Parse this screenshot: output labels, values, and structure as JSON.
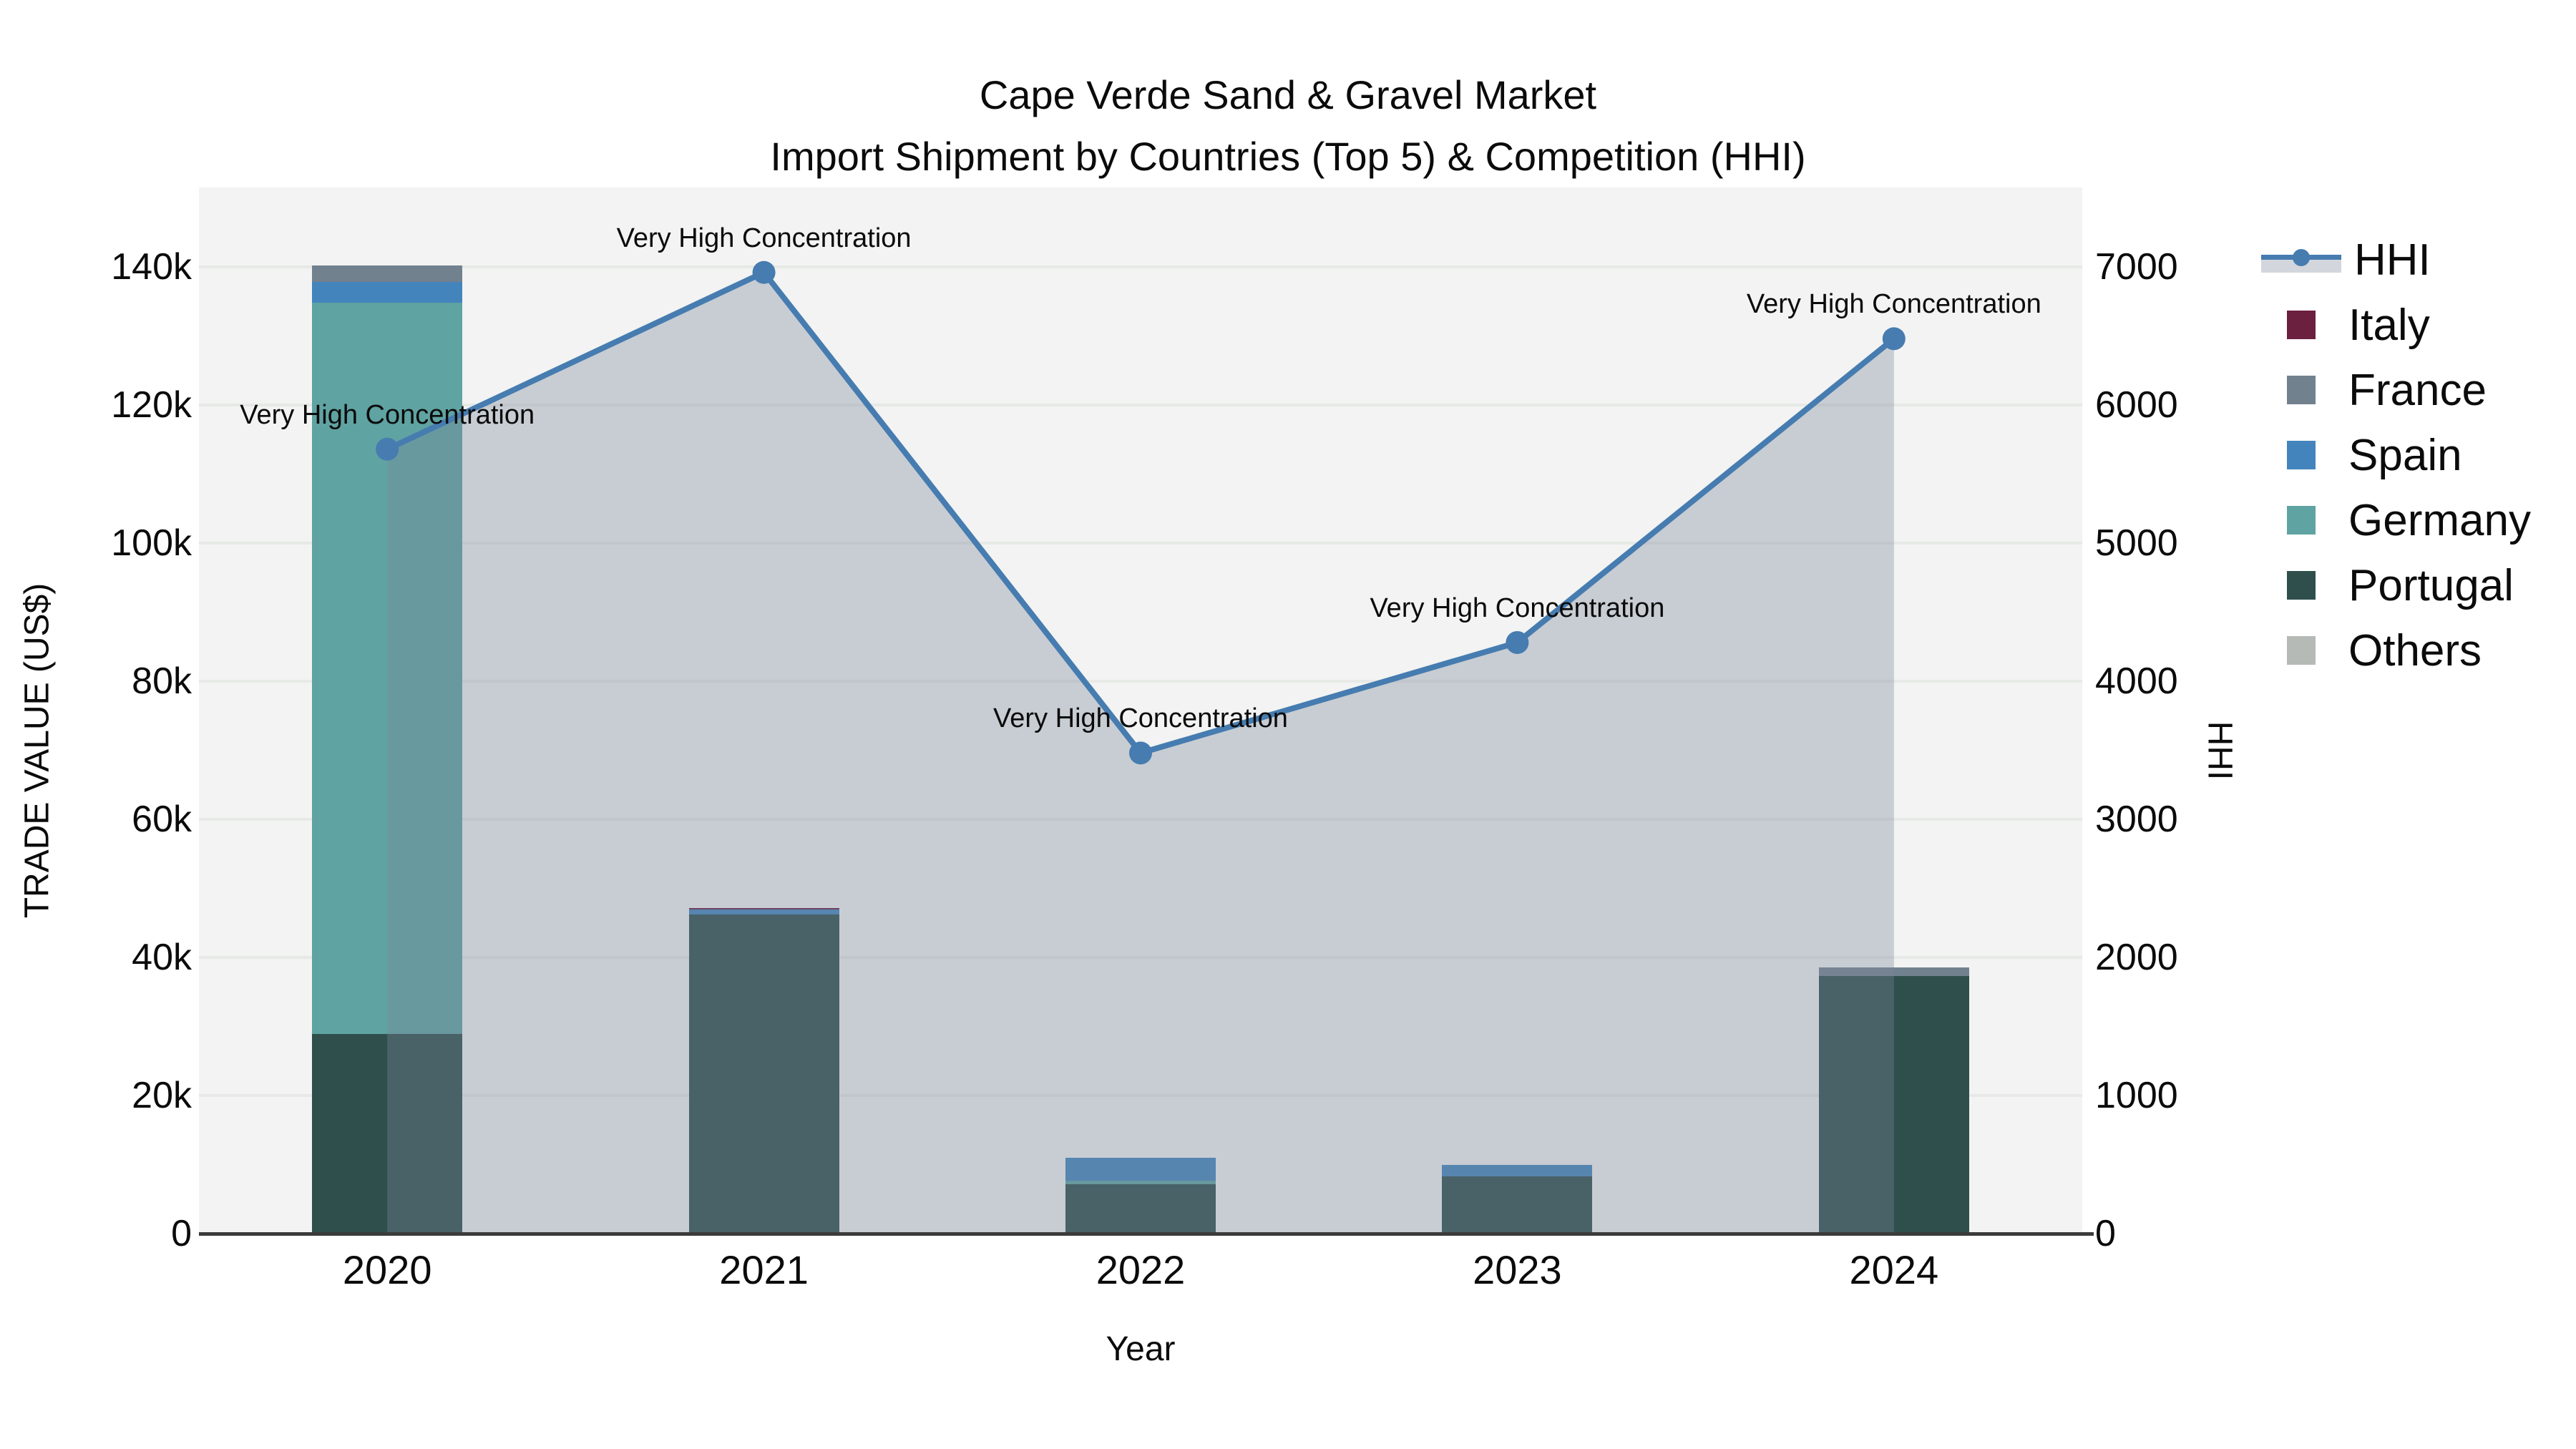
{
  "title": {
    "line1": "Cape Verde Sand & Gravel Market",
    "line2": "Import Shipment by Countries (Top 5) & Competition (HHI)"
  },
  "axes": {
    "left": {
      "title": "TRADE VALUE (US$)",
      "tick_labels": [
        "0",
        "20k",
        "40k",
        "60k",
        "80k",
        "100k",
        "120k",
        "140k"
      ],
      "range": [
        0,
        140000
      ]
    },
    "right": {
      "title": "HHI",
      "tick_labels": [
        "0",
        "1000",
        "2000",
        "3000",
        "4000",
        "5000",
        "6000",
        "7000"
      ],
      "range": [
        0,
        7000
      ]
    },
    "x": {
      "title": "Year",
      "tick_labels": [
        "2020",
        "2021",
        "2022",
        "2023",
        "2024"
      ]
    }
  },
  "legend": {
    "position": "right",
    "items": [
      {
        "label": "HHI",
        "kind": "line",
        "color": "#467cb0",
        "band_color": "#d3d6dc"
      },
      {
        "label": "Italy",
        "kind": "bar",
        "color": "#6b2040"
      },
      {
        "label": "France",
        "kind": "bar",
        "color": "#72818e"
      },
      {
        "label": "Spain",
        "kind": "bar",
        "color": "#4384bc"
      },
      {
        "label": "Germany",
        "kind": "bar",
        "color": "#5fa3a2"
      },
      {
        "label": "Portugal",
        "kind": "bar",
        "color": "#2f4f4c"
      },
      {
        "label": "Others",
        "kind": "bar",
        "color": "#b5bab7"
      }
    ]
  },
  "colors": {
    "plot_bg": "#f2f3f2",
    "gridline": "#e7e9e7",
    "axis_line": "#3b3b3b",
    "hhi_line": "#467cb0",
    "hhi_fill": "rgba(124,134,156,0.35)"
  },
  "chart_data": {
    "type": "bar+line combo (stacked bars on left axis, HHI line with area fill on right axis)",
    "categories": [
      "2020",
      "2021",
      "2022",
      "2023",
      "2024"
    ],
    "xlabel": "Year",
    "ylabel_left": "TRADE VALUE (US$)",
    "ylabel_right": "HHI",
    "left_ylim": [
      0,
      140000
    ],
    "right_ylim": [
      0,
      7000
    ],
    "grid": true,
    "legend_position": "right",
    "stack_order_bottom_to_top": [
      "Portugal",
      "Germany",
      "Spain",
      "France",
      "Italy",
      "Others"
    ],
    "bar_series": [
      {
        "name": "Portugal",
        "color": "#2f4f4c",
        "values": [
          28900,
          46200,
          7200,
          8300,
          37300
        ]
      },
      {
        "name": "Germany",
        "color": "#5fa3a2",
        "values": [
          105900,
          0,
          500,
          0,
          0
        ]
      },
      {
        "name": "Spain",
        "color": "#4384bc",
        "values": [
          3000,
          700,
          3300,
          1700,
          0
        ]
      },
      {
        "name": "France",
        "color": "#72818e",
        "values": [
          2400,
          0,
          0,
          0,
          1200
        ]
      },
      {
        "name": "Italy",
        "color": "#6b2040",
        "values": [
          0,
          300,
          0,
          0,
          0
        ]
      },
      {
        "name": "Others",
        "color": "#b5bab7",
        "values": [
          0,
          0,
          0,
          0,
          0
        ]
      }
    ],
    "bar_totals_approx": [
      140200,
      47200,
      11000,
      10000,
      38500
    ],
    "line_series": {
      "name": "HHI",
      "axis": "right",
      "color": "#467cb0",
      "fill_color": "rgba(124,134,156,0.35)",
      "values": [
        5680,
        6960,
        3480,
        4280,
        6480
      ]
    },
    "point_annotations": [
      "Very High Concentration",
      "Very High Concentration",
      "Very High Concentration",
      "Very High Concentration",
      "Very High Concentration"
    ]
  }
}
